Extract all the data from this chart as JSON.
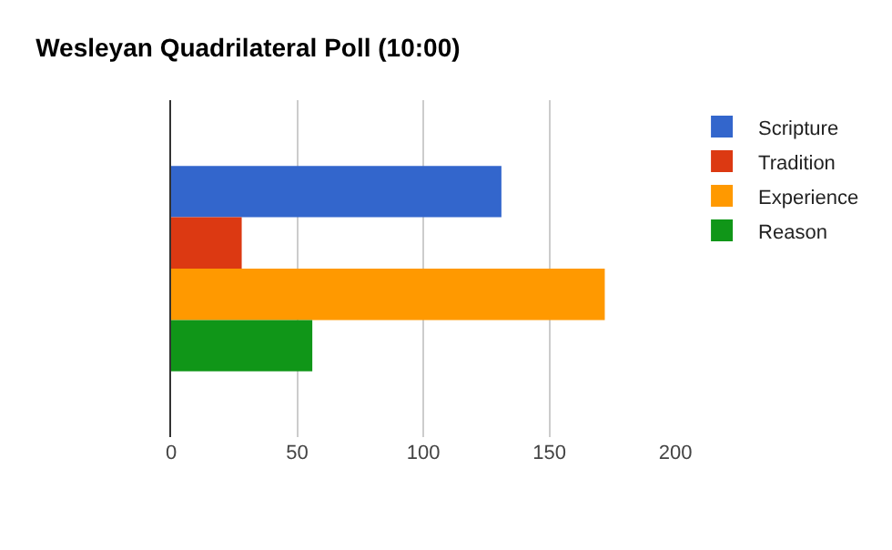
{
  "chart_data": {
    "type": "bar",
    "orientation": "horizontal",
    "title": "Wesleyan Quadrilateral Poll (10:00)",
    "categories": [
      null
    ],
    "series": [
      {
        "name": "Scripture",
        "color": "#3366cc",
        "values": [
          131
        ]
      },
      {
        "name": "Tradition",
        "color": "#dc3912",
        "values": [
          28
        ]
      },
      {
        "name": "Experience",
        "color": "#ff9900",
        "values": [
          172
        ]
      },
      {
        "name": "Reason",
        "color": "#109618",
        "values": [
          56
        ]
      }
    ],
    "xlim": [
      0,
      200
    ],
    "xticks": [
      0,
      50,
      100,
      150,
      200
    ],
    "grid": "x",
    "legend": "top right"
  }
}
